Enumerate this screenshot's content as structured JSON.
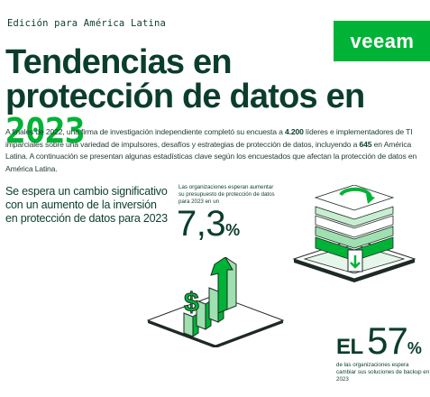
{
  "header": {
    "edition": "Edición para América Latina",
    "logo_text": "veeam"
  },
  "title": {
    "line1": "Tendencias en",
    "line2": "protección de datos en",
    "year": "2023"
  },
  "intro": {
    "part1": "A finales de 2022, una firma de investigación independiente completó su encuesta a ",
    "respondents": "4.200",
    "part2": " líderes e implementadores de TI imparciales sobre una variedad de impulsores, desafíos y estrategias de protección de datos, incluyendo a ",
    "latam_count": "645",
    "part3": " en América Latina. A continuación se presentan algunas estadísticas clave según los encuestados que afectan la protección de datos en América Latina."
  },
  "section": {
    "lead": "Se espera un cambio significativo con un aumento de la inversión en protección de datos para 2023"
  },
  "stat_budget": {
    "caption": "Las organizaciones esperan aumentar su presupuesto de protección de datos para 2023 en un",
    "value": "7,3",
    "unit": "%"
  },
  "stat_backup": {
    "prefix": "EL",
    "value": "57",
    "unit": "%",
    "caption": "de las organizaciones espera cambiar sus soluciones de backup en 2023"
  },
  "colors": {
    "brand_green": "#00b336",
    "dark_green": "#0b3d2c"
  },
  "icons": {
    "growth": "bar-chart-arrow-dollar-icon",
    "refresh": "refresh-stack-icon"
  }
}
